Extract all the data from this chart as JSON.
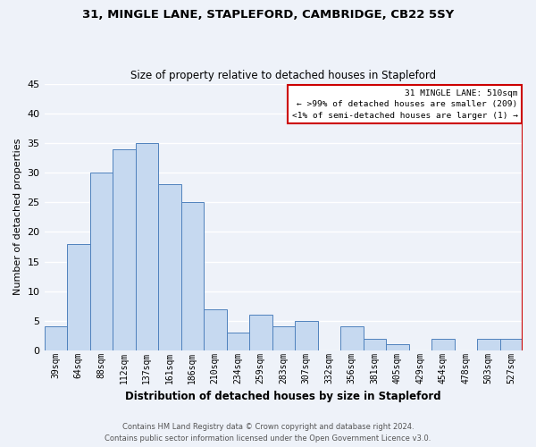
{
  "title_line1": "31, MINGLE LANE, STAPLEFORD, CAMBRIDGE, CB22 5SY",
  "title_line2": "Size of property relative to detached houses in Stapleford",
  "xlabel": "Distribution of detached houses by size in Stapleford",
  "ylabel": "Number of detached properties",
  "bar_labels": [
    "39sqm",
    "64sqm",
    "88sqm",
    "112sqm",
    "137sqm",
    "161sqm",
    "186sqm",
    "210sqm",
    "234sqm",
    "259sqm",
    "283sqm",
    "307sqm",
    "332sqm",
    "356sqm",
    "381sqm",
    "405sqm",
    "429sqm",
    "454sqm",
    "478sqm",
    "503sqm",
    "527sqm"
  ],
  "bar_values": [
    4,
    18,
    30,
    34,
    35,
    28,
    25,
    7,
    3,
    6,
    4,
    5,
    0,
    4,
    2,
    1,
    0,
    2,
    0,
    2,
    2
  ],
  "bar_color": "#c6d9f0",
  "bar_edge_color": "#4f81bd",
  "vline_color": "#cc0000",
  "ylim": [
    0,
    45
  ],
  "yticks": [
    0,
    5,
    10,
    15,
    20,
    25,
    30,
    35,
    40,
    45
  ],
  "legend_title": "31 MINGLE LANE: 510sqm",
  "legend_line1": "← >99% of detached houses are smaller (209)",
  "legend_line2": "<1% of semi-detached houses are larger (1) →",
  "legend_box_color": "#cc0000",
  "footer_line1": "Contains HM Land Registry data © Crown copyright and database right 2024.",
  "footer_line2": "Contains public sector information licensed under the Open Government Licence v3.0.",
  "bg_color": "#eef2f9",
  "grid_color": "#ffffff"
}
